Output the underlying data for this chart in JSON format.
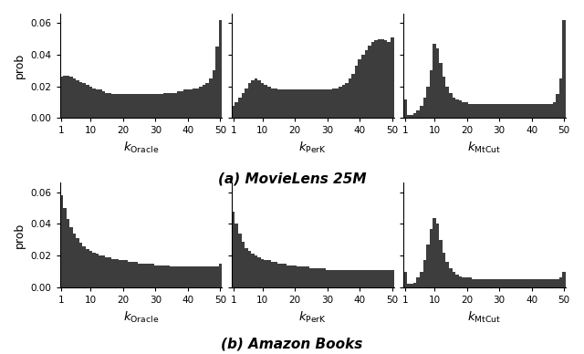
{
  "bar_color": "#3d3d3d",
  "ylim": [
    0,
    0.066
  ],
  "yticks": [
    0.0,
    0.02,
    0.04,
    0.06
  ],
  "xticks": [
    1,
    10,
    20,
    30,
    40,
    50
  ],
  "ylabel": "prob",
  "row_labels": [
    "(a) MovieLens 25M",
    "(b) Amazon Books"
  ],
  "figsize": [
    6.4,
    3.88
  ],
  "dpi": 100,
  "ml25m_oracle_y": [
    0.026,
    0.027,
    0.027,
    0.026,
    0.025,
    0.024,
    0.023,
    0.022,
    0.021,
    0.02,
    0.019,
    0.018,
    0.018,
    0.017,
    0.016,
    0.016,
    0.015,
    0.015,
    0.015,
    0.015,
    0.015,
    0.015,
    0.015,
    0.015,
    0.015,
    0.015,
    0.015,
    0.015,
    0.015,
    0.015,
    0.015,
    0.015,
    0.016,
    0.016,
    0.016,
    0.016,
    0.017,
    0.017,
    0.018,
    0.018,
    0.018,
    0.019,
    0.019,
    0.02,
    0.021,
    0.022,
    0.025,
    0.03,
    0.045,
    0.062
  ],
  "ml25m_perk_y": [
    0.008,
    0.01,
    0.013,
    0.016,
    0.019,
    0.022,
    0.024,
    0.025,
    0.024,
    0.022,
    0.021,
    0.02,
    0.019,
    0.019,
    0.018,
    0.018,
    0.018,
    0.018,
    0.018,
    0.018,
    0.018,
    0.018,
    0.018,
    0.018,
    0.018,
    0.018,
    0.018,
    0.018,
    0.018,
    0.018,
    0.018,
    0.019,
    0.019,
    0.02,
    0.021,
    0.022,
    0.025,
    0.028,
    0.033,
    0.037,
    0.04,
    0.043,
    0.046,
    0.048,
    0.049,
    0.05,
    0.05,
    0.049,
    0.048,
    0.051
  ],
  "ml25m_mtcut_y": [
    0.012,
    0.002,
    0.002,
    0.003,
    0.005,
    0.008,
    0.013,
    0.02,
    0.03,
    0.047,
    0.044,
    0.035,
    0.026,
    0.02,
    0.016,
    0.013,
    0.012,
    0.011,
    0.01,
    0.01,
    0.009,
    0.009,
    0.009,
    0.009,
    0.009,
    0.009,
    0.009,
    0.009,
    0.009,
    0.009,
    0.009,
    0.009,
    0.009,
    0.009,
    0.009,
    0.009,
    0.009,
    0.009,
    0.009,
    0.009,
    0.009,
    0.009,
    0.009,
    0.009,
    0.009,
    0.009,
    0.01,
    0.015,
    0.025,
    0.062
  ],
  "books_oracle_y": [
    0.058,
    0.05,
    0.043,
    0.038,
    0.034,
    0.031,
    0.028,
    0.026,
    0.024,
    0.023,
    0.022,
    0.021,
    0.02,
    0.02,
    0.019,
    0.019,
    0.018,
    0.018,
    0.017,
    0.017,
    0.017,
    0.016,
    0.016,
    0.016,
    0.015,
    0.015,
    0.015,
    0.015,
    0.015,
    0.014,
    0.014,
    0.014,
    0.014,
    0.014,
    0.013,
    0.013,
    0.013,
    0.013,
    0.013,
    0.013,
    0.013,
    0.013,
    0.013,
    0.013,
    0.013,
    0.013,
    0.013,
    0.013,
    0.013,
    0.015
  ],
  "books_perk_y": [
    0.048,
    0.04,
    0.034,
    0.029,
    0.025,
    0.023,
    0.021,
    0.02,
    0.019,
    0.018,
    0.017,
    0.017,
    0.016,
    0.016,
    0.015,
    0.015,
    0.015,
    0.014,
    0.014,
    0.014,
    0.013,
    0.013,
    0.013,
    0.013,
    0.012,
    0.012,
    0.012,
    0.012,
    0.012,
    0.011,
    0.011,
    0.011,
    0.011,
    0.011,
    0.011,
    0.011,
    0.011,
    0.011,
    0.011,
    0.011,
    0.011,
    0.011,
    0.011,
    0.011,
    0.011,
    0.011,
    0.011,
    0.011,
    0.011,
    0.011
  ],
  "books_mtcut_y": [
    0.01,
    0.002,
    0.002,
    0.003,
    0.006,
    0.01,
    0.017,
    0.027,
    0.037,
    0.044,
    0.04,
    0.03,
    0.022,
    0.016,
    0.012,
    0.01,
    0.008,
    0.007,
    0.006,
    0.006,
    0.006,
    0.005,
    0.005,
    0.005,
    0.005,
    0.005,
    0.005,
    0.005,
    0.005,
    0.005,
    0.005,
    0.005,
    0.005,
    0.005,
    0.005,
    0.005,
    0.005,
    0.005,
    0.005,
    0.005,
    0.005,
    0.005,
    0.005,
    0.005,
    0.005,
    0.005,
    0.005,
    0.005,
    0.006,
    0.01
  ]
}
